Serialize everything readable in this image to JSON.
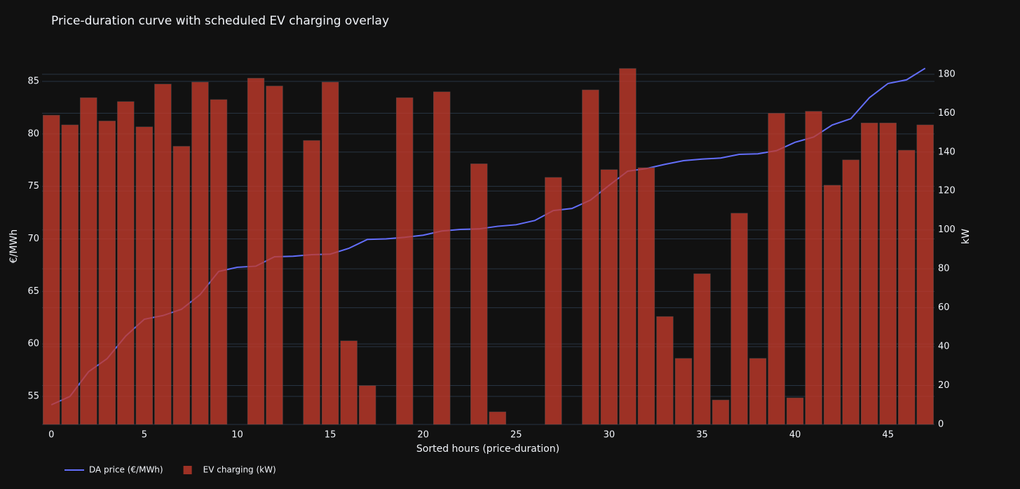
{
  "chart_data": {
    "type": "combo",
    "title": "Price-duration curve with scheduled EV charging overlay",
    "x_label": "Sorted hours (price-duration)",
    "y_label": "€/MWh",
    "y2_label": "kW",
    "x": [
      0,
      1,
      2,
      3,
      4,
      5,
      6,
      7,
      8,
      9,
      10,
      11,
      12,
      13,
      14,
      15,
      16,
      17,
      18,
      19,
      20,
      21,
      22,
      23,
      24,
      25,
      26,
      27,
      28,
      29,
      30,
      31,
      32,
      33,
      34,
      35,
      36,
      37,
      38,
      39,
      40,
      41,
      42,
      43,
      44,
      45,
      46,
      47
    ],
    "xlim": [
      -0.5,
      47.5
    ],
    "xticks": [
      0,
      5,
      10,
      15,
      20,
      25,
      30,
      35,
      40,
      45
    ],
    "ylim": [
      52.33,
      86.27
    ],
    "yticks": [
      55,
      60,
      65,
      70,
      75,
      80,
      85
    ],
    "y2lim": [
      0,
      183.2
    ],
    "y2ticks": [
      0,
      20,
      40,
      60,
      80,
      100,
      120,
      140,
      160,
      180
    ],
    "grid": true,
    "legend": "bottom-left",
    "series": [
      {
        "name": "DA price (€/MWh)",
        "type": "line",
        "color": "#636efa",
        "values": [
          54.2,
          55.0,
          57.35,
          58.6,
          60.75,
          62.35,
          62.7,
          63.3,
          64.7,
          66.9,
          67.3,
          67.4,
          68.3,
          68.35,
          68.5,
          68.55,
          69.1,
          69.95,
          70.0,
          70.15,
          70.35,
          70.75,
          70.9,
          70.95,
          71.2,
          71.35,
          71.75,
          72.7,
          72.9,
          73.7,
          75.1,
          76.45,
          76.7,
          77.1,
          77.45,
          77.6,
          77.7,
          78.05,
          78.1,
          78.4,
          79.2,
          79.7,
          80.85,
          81.45,
          83.45,
          84.8,
          85.15,
          86.25
        ]
      },
      {
        "name": "EV charging (kW)",
        "type": "bar",
        "axis": "y2",
        "color": "#c0392b",
        "opacity": 0.8,
        "values": [
          159,
          154,
          168,
          156,
          166,
          153,
          175,
          143,
          176,
          167,
          0,
          178,
          174,
          0,
          146,
          176,
          43,
          20,
          0,
          168,
          0,
          171,
          0,
          134,
          6.5,
          0,
          0,
          127,
          0,
          172,
          131,
          183,
          132,
          55.5,
          34,
          77.5,
          12.6,
          108.6,
          34,
          160,
          13.7,
          161,
          123,
          136,
          155,
          155,
          141,
          154
        ]
      }
    ]
  }
}
